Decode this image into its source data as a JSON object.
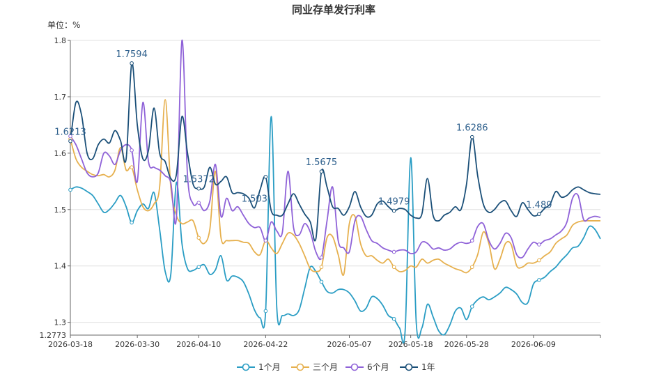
{
  "chart_data": {
    "type": "line",
    "title": "同业存单发行利率",
    "unit_label": "单位：%",
    "ylim": [
      1.2773,
      1.8
    ],
    "y_ticks": [
      1.3,
      1.4,
      1.5,
      1.6,
      1.7,
      1.8
    ],
    "y_min_label": "1.2773",
    "grid": true,
    "legend_position": "bottom-center",
    "x_dates": [
      "2026-03-18",
      "2026-03-19",
      "2026-03-20",
      "2026-03-21",
      "2026-03-22",
      "2026-03-23",
      "2026-03-24",
      "2026-03-25",
      "2026-03-26",
      "2026-03-27",
      "2026-03-28",
      "2026-03-29",
      "2026-03-30",
      "2026-03-31",
      "2026-04-01",
      "2026-04-02",
      "2026-04-03",
      "2026-04-04",
      "2026-04-05",
      "2026-04-06",
      "2026-04-07",
      "2026-04-08",
      "2026-04-09",
      "2026-04-10",
      "2026-04-11",
      "2026-04-12",
      "2026-04-13",
      "2026-04-14",
      "2026-04-15",
      "2026-04-16",
      "2026-04-17",
      "2026-04-18",
      "2026-04-19",
      "2026-04-20",
      "2026-04-21",
      "2026-04-22",
      "2026-04-23",
      "2026-04-24",
      "2026-04-25",
      "2026-04-26",
      "2026-04-27",
      "2026-04-28",
      "2026-04-29",
      "2026-04-30",
      "2026-05-01",
      "2026-05-02",
      "2026-05-03",
      "2026-05-04",
      "2026-05-05",
      "2026-05-06",
      "2026-05-07",
      "2026-05-08",
      "2026-05-09",
      "2026-05-10",
      "2026-05-11",
      "2026-05-12",
      "2026-05-13",
      "2026-05-14",
      "2026-05-15",
      "2026-05-16",
      "2026-05-17",
      "2026-05-18",
      "2026-05-19",
      "2026-05-20",
      "2026-05-21",
      "2026-05-22",
      "2026-05-23",
      "2026-05-24",
      "2026-05-25",
      "2026-05-26",
      "2026-05-27",
      "2026-05-28",
      "2026-05-29",
      "2026-05-30",
      "2026-05-31",
      "2026-06-01",
      "2026-06-02",
      "2026-06-03",
      "2026-06-04",
      "2026-06-05",
      "2026-06-06",
      "2026-06-07",
      "2026-06-08",
      "2026-06-09",
      "2026-06-10",
      "2026-06-11",
      "2026-06-12",
      "2026-06-13",
      "2026-06-14",
      "2026-06-15",
      "2026-06-16",
      "2026-06-17",
      "2026-06-18",
      "2026-06-19",
      "2026-06-20",
      "2026-06-21"
    ],
    "x_tick_labels": [
      "2026-03-18",
      "2026-03-30",
      "2026-04-10",
      "2026-04-22",
      "2026-05-07",
      "2026-05-18",
      "2026-05-28",
      "2026-06-09"
    ],
    "series": [
      {
        "name": "1个月",
        "color": "#2a9dc4",
        "values": [
          1.535,
          1.54,
          1.538,
          1.532,
          1.525,
          1.51,
          1.495,
          1.5,
          1.512,
          1.525,
          1.505,
          1.477,
          1.498,
          1.51,
          1.502,
          1.53,
          1.465,
          1.39,
          1.385,
          1.548,
          1.44,
          1.395,
          1.392,
          1.398,
          1.402,
          1.385,
          1.393,
          1.418,
          1.375,
          1.382,
          1.38,
          1.372,
          1.35,
          1.322,
          1.308,
          1.32,
          1.665,
          1.325,
          1.312,
          1.315,
          1.312,
          1.322,
          1.36,
          1.398,
          1.39,
          1.372,
          1.355,
          1.352,
          1.358,
          1.358,
          1.352,
          1.338,
          1.32,
          1.325,
          1.345,
          1.342,
          1.33,
          1.312,
          1.306,
          1.29,
          1.285,
          1.592,
          1.298,
          1.29,
          1.332,
          1.31,
          1.285,
          1.278,
          1.295,
          1.32,
          1.325,
          1.305,
          1.328,
          1.34,
          1.345,
          1.34,
          1.345,
          1.352,
          1.362,
          1.358,
          1.35,
          1.335,
          1.335,
          1.368,
          1.375,
          1.38,
          1.39,
          1.398,
          1.41,
          1.42,
          1.432,
          1.435,
          1.45,
          1.47,
          1.465,
          1.448
        ]
      },
      {
        "name": "三个月",
        "color": "#e6b04e",
        "values": [
          1.625,
          1.59,
          1.575,
          1.568,
          1.562,
          1.56,
          1.562,
          1.558,
          1.57,
          1.61,
          1.57,
          1.575,
          1.535,
          1.505,
          1.498,
          1.51,
          1.54,
          1.695,
          1.54,
          1.49,
          1.475,
          1.478,
          1.48,
          1.45,
          1.44,
          1.465,
          1.568,
          1.45,
          1.445,
          1.445,
          1.445,
          1.442,
          1.44,
          1.425,
          1.42,
          1.445,
          1.432,
          1.422,
          1.44,
          1.458,
          1.455,
          1.44,
          1.418,
          1.395,
          1.39,
          1.398,
          1.45,
          1.452,
          1.42,
          1.385,
          1.475,
          1.488,
          1.44,
          1.418,
          1.418,
          1.41,
          1.405,
          1.412,
          1.398,
          1.39,
          1.392,
          1.4,
          1.398,
          1.412,
          1.405,
          1.41,
          1.412,
          1.405,
          1.4,
          1.395,
          1.392,
          1.388,
          1.398,
          1.42,
          1.46,
          1.44,
          1.395,
          1.412,
          1.44,
          1.438,
          1.4,
          1.398,
          1.405,
          1.405,
          1.41,
          1.418,
          1.425,
          1.44,
          1.448,
          1.455,
          1.472,
          1.478,
          1.48,
          1.48,
          1.48,
          1.48
        ]
      },
      {
        "name": "6个月",
        "color": "#8f62d8",
        "values": [
          1.63,
          1.615,
          1.59,
          1.565,
          1.558,
          1.565,
          1.6,
          1.595,
          1.58,
          1.605,
          1.615,
          1.605,
          1.55,
          1.69,
          1.585,
          1.575,
          1.57,
          1.56,
          1.548,
          1.485,
          1.8,
          1.56,
          1.51,
          1.512,
          1.498,
          1.515,
          1.58,
          1.488,
          1.52,
          1.498,
          1.505,
          1.49,
          1.475,
          1.468,
          1.468,
          1.445,
          1.478,
          1.462,
          1.46,
          1.568,
          1.468,
          1.455,
          1.475,
          1.46,
          1.425,
          1.415,
          1.48,
          1.54,
          1.445,
          1.432,
          1.425,
          1.48,
          1.488,
          1.465,
          1.445,
          1.44,
          1.432,
          1.428,
          1.425,
          1.428,
          1.428,
          1.422,
          1.425,
          1.442,
          1.44,
          1.43,
          1.432,
          1.428,
          1.43,
          1.438,
          1.442,
          1.44,
          1.445,
          1.47,
          1.475,
          1.445,
          1.43,
          1.44,
          1.458,
          1.45,
          1.42,
          1.415,
          1.43,
          1.442,
          1.438,
          1.445,
          1.448,
          1.455,
          1.462,
          1.478,
          1.52,
          1.525,
          1.482,
          1.485,
          1.488,
          1.486
        ]
      },
      {
        "name": "1年",
        "color": "#1a4f78",
        "values": [
          1.6213,
          1.69,
          1.668,
          1.6,
          1.59,
          1.615,
          1.625,
          1.618,
          1.64,
          1.622,
          1.59,
          1.7594,
          1.65,
          1.59,
          1.605,
          1.68,
          1.6,
          1.585,
          1.555,
          1.562,
          1.665,
          1.6,
          1.545,
          1.5372,
          1.54,
          1.575,
          1.545,
          1.55,
          1.558,
          1.53,
          1.53,
          1.528,
          1.52,
          1.503,
          1.535,
          1.558,
          1.498,
          1.49,
          1.49,
          1.51,
          1.528,
          1.51,
          1.492,
          1.478,
          1.448,
          1.5675,
          1.54,
          1.505,
          1.502,
          1.49,
          1.505,
          1.532,
          1.505,
          1.488,
          1.49,
          1.51,
          1.515,
          1.505,
          1.4979,
          1.502,
          1.5,
          1.49,
          1.485,
          1.492,
          1.555,
          1.49,
          1.48,
          1.49,
          1.495,
          1.505,
          1.5,
          1.545,
          1.6286,
          1.56,
          1.51,
          1.495,
          1.5,
          1.512,
          1.515,
          1.498,
          1.488,
          1.512,
          1.5,
          1.489,
          1.492,
          1.502,
          1.51,
          1.532,
          1.522,
          1.525,
          1.535,
          1.54,
          1.535,
          1.53,
          1.528,
          1.527
        ]
      }
    ],
    "marker_indices": [
      0,
      11,
      23,
      35,
      45,
      58,
      72,
      84
    ],
    "value_labels": [
      {
        "series": "1年",
        "index": 0,
        "text": "1.6213"
      },
      {
        "series": "1年",
        "index": 11,
        "text": "1.7594"
      },
      {
        "series": "1年",
        "index": 23,
        "text": "1.5372"
      },
      {
        "series": "1年",
        "index": 33,
        "text": "1.503"
      },
      {
        "series": "1年",
        "index": 45,
        "text": "1.5675"
      },
      {
        "series": "1年",
        "index": 58,
        "text": "1.4979"
      },
      {
        "series": "1年",
        "index": 72,
        "text": "1.6286"
      },
      {
        "series": "1年",
        "index": 84,
        "text": "1.489"
      }
    ]
  }
}
